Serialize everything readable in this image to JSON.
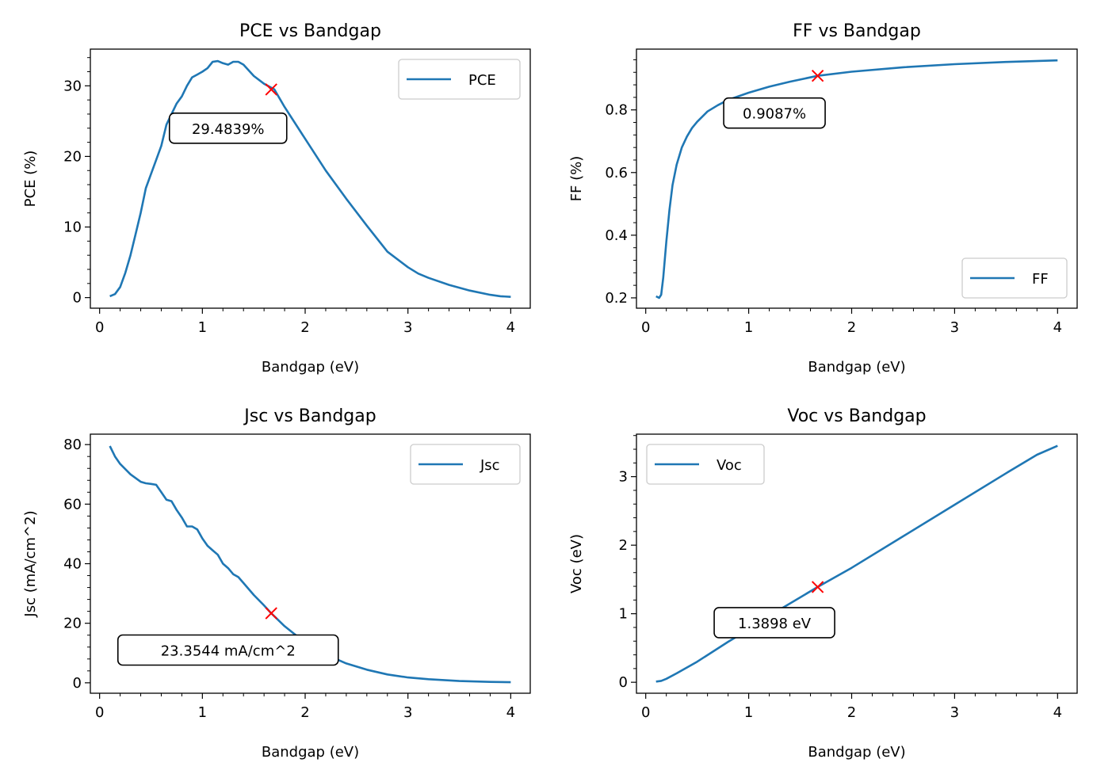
{
  "chart_data": [
    {
      "type": "line",
      "title": "PCE vs Bandgap",
      "xlabel": "Bandgap (eV)",
      "ylabel": "PCE (%)",
      "xlim": [
        -0.09,
        4.19
      ],
      "ylim": [
        -1.5,
        35.2
      ],
      "xticks": [
        0,
        1,
        2,
        3,
        4
      ],
      "yticks": [
        0,
        10,
        20,
        30
      ],
      "legend": "top-right",
      "series": [
        {
          "name": "PCE",
          "color": "#1f77b4",
          "x": [
            0.1,
            0.15,
            0.2,
            0.25,
            0.3,
            0.35,
            0.4,
            0.45,
            0.5,
            0.55,
            0.6,
            0.65,
            0.7,
            0.75,
            0.8,
            0.85,
            0.9,
            0.95,
            1.0,
            1.05,
            1.1,
            1.15,
            1.2,
            1.25,
            1.3,
            1.35,
            1.4,
            1.5,
            1.6,
            1.7,
            1.8,
            2.0,
            2.2,
            2.4,
            2.6,
            2.8,
            3.0,
            3.1,
            3.2,
            3.4,
            3.6,
            3.8,
            3.9,
            4.0
          ],
          "y": [
            0.2,
            0.5,
            1.5,
            3.5,
            6.0,
            9.0,
            12.0,
            15.5,
            17.5,
            19.5,
            21.5,
            24.5,
            26.0,
            27.5,
            28.5,
            30.0,
            31.2,
            31.6,
            32.0,
            32.5,
            33.4,
            33.5,
            33.2,
            33.0,
            33.4,
            33.4,
            33.0,
            31.4,
            30.3,
            29.5,
            27.0,
            22.5,
            18.0,
            14.0,
            10.2,
            6.5,
            4.3,
            3.4,
            2.8,
            1.8,
            1.0,
            0.4,
            0.2,
            0.1
          ]
        }
      ],
      "marker": {
        "x": 1.67,
        "y": 29.4839,
        "color": "#ff0000"
      },
      "annotation": {
        "text": "29.4839%",
        "x": 1.25,
        "y": 24.0
      }
    },
    {
      "type": "line",
      "title": "FF vs Bandgap",
      "xlabel": "Bandgap (eV)",
      "ylabel": "FF (%)",
      "xlim": [
        -0.09,
        4.19
      ],
      "ylim": [
        0.167,
        0.994
      ],
      "xticks": [
        0,
        1,
        2,
        3,
        4
      ],
      "yticks": [
        0.2,
        0.4,
        0.6,
        0.8
      ],
      "legend": "bottom-right",
      "series": [
        {
          "name": "FF",
          "color": "#1f77b4",
          "x": [
            0.1,
            0.13,
            0.15,
            0.17,
            0.2,
            0.23,
            0.26,
            0.3,
            0.35,
            0.4,
            0.45,
            0.5,
            0.6,
            0.7,
            0.8,
            1.0,
            1.2,
            1.4,
            1.67,
            2.0,
            2.5,
            3.0,
            3.5,
            4.0
          ],
          "y": [
            0.205,
            0.2,
            0.21,
            0.265,
            0.38,
            0.48,
            0.56,
            0.625,
            0.68,
            0.715,
            0.742,
            0.762,
            0.795,
            0.815,
            0.832,
            0.855,
            0.874,
            0.89,
            0.9087,
            0.922,
            0.936,
            0.946,
            0.953,
            0.958
          ]
        }
      ],
      "marker": {
        "x": 1.67,
        "y": 0.9087,
        "color": "#ff0000"
      },
      "annotation": {
        "text": "0.9087%",
        "x": 1.25,
        "y": 0.79
      }
    },
    {
      "type": "line",
      "title": "Jsc vs Bandgap",
      "xlabel": "Bandgap (eV)",
      "ylabel": "Jsc (mA/cm^2)",
      "xlim": [
        -0.09,
        4.19
      ],
      "ylim": [
        -3.5,
        83.5
      ],
      "xticks": [
        0,
        1,
        2,
        3,
        4
      ],
      "yticks": [
        0,
        20,
        40,
        60,
        80
      ],
      "legend": "top-right",
      "series": [
        {
          "name": "Jsc",
          "color": "#1f77b4",
          "x": [
            0.1,
            0.15,
            0.2,
            0.3,
            0.4,
            0.45,
            0.5,
            0.55,
            0.6,
            0.65,
            0.7,
            0.75,
            0.8,
            0.85,
            0.9,
            0.95,
            1.0,
            1.05,
            1.1,
            1.15,
            1.2,
            1.25,
            1.3,
            1.35,
            1.4,
            1.5,
            1.6,
            1.67,
            1.8,
            2.0,
            2.2,
            2.4,
            2.6,
            2.8,
            3.0,
            3.2,
            3.5,
            3.8,
            4.0
          ],
          "y": [
            79.5,
            76.0,
            73.5,
            70.0,
            67.5,
            67.0,
            66.8,
            66.5,
            64.0,
            61.5,
            61.0,
            58.0,
            55.5,
            52.5,
            52.5,
            51.5,
            48.5,
            46.0,
            44.5,
            43.0,
            40.0,
            38.5,
            36.5,
            35.5,
            33.5,
            29.5,
            26.0,
            23.3544,
            19.0,
            13.5,
            9.5,
            6.5,
            4.4,
            2.8,
            1.8,
            1.2,
            0.6,
            0.3,
            0.2
          ]
        }
      ],
      "marker": {
        "x": 1.67,
        "y": 23.3544,
        "color": "#ff0000"
      },
      "annotation": {
        "text": "23.3544 mA/cm^2",
        "x": 1.25,
        "y": 11.0
      }
    },
    {
      "type": "line",
      "title": "Voc vs Bandgap",
      "xlabel": "Bandgap (eV)",
      "ylabel": "Voc (eV)",
      "xlim": [
        -0.09,
        4.19
      ],
      "ylim": [
        -0.16,
        3.62
      ],
      "xticks": [
        0,
        1,
        2,
        3,
        4
      ],
      "yticks": [
        0,
        1,
        2,
        3
      ],
      "legend": "top-left",
      "series": [
        {
          "name": "Voc",
          "color": "#1f77b4",
          "x": [
            0.1,
            0.15,
            0.2,
            0.3,
            0.5,
            0.8,
            1.0,
            1.3,
            1.67,
            2.0,
            2.5,
            3.0,
            3.5,
            3.8,
            4.0
          ],
          "y": [
            0.01,
            0.02,
            0.05,
            0.13,
            0.3,
            0.59,
            0.77,
            1.06,
            1.3898,
            1.67,
            2.13,
            2.59,
            3.05,
            3.32,
            3.45
          ]
        }
      ],
      "marker": {
        "x": 1.67,
        "y": 1.3898,
        "color": "#ff0000"
      },
      "annotation": {
        "text": "1.3898 eV",
        "x": 1.25,
        "y": 0.87
      }
    }
  ]
}
